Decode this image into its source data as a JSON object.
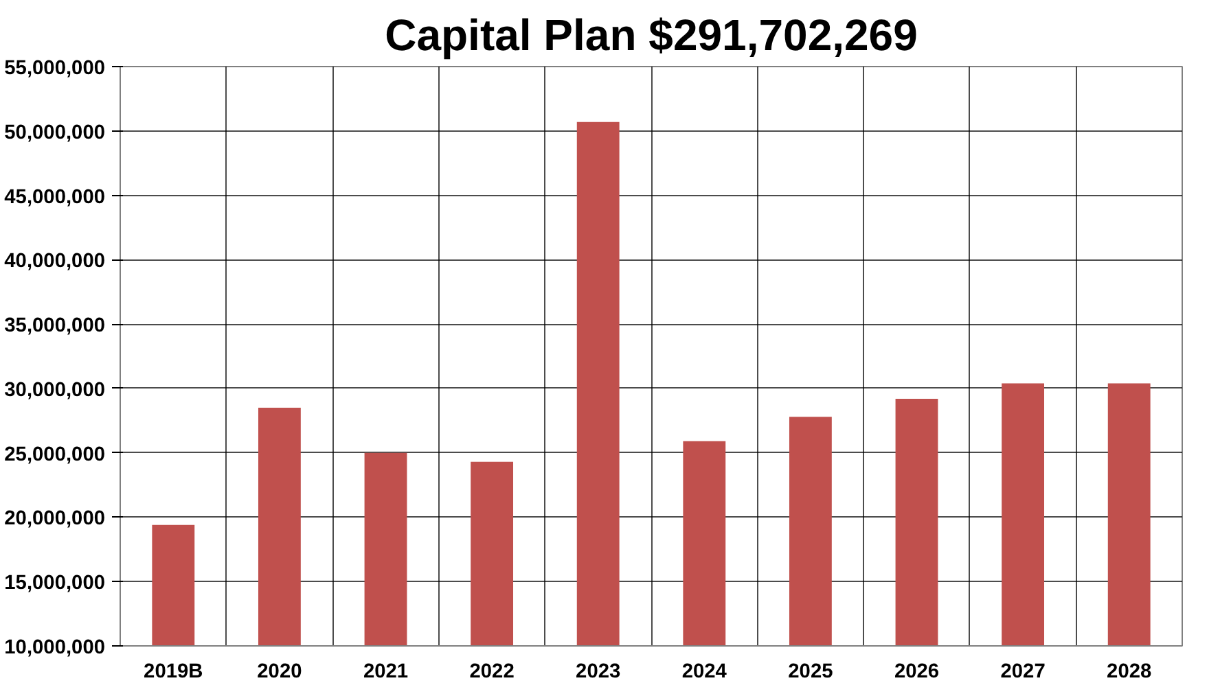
{
  "chart_data": {
    "type": "bar",
    "title": "Capital Plan $291,702,269",
    "categories": [
      "2019B",
      "2020",
      "2021",
      "2022",
      "2023",
      "2024",
      "2025",
      "2026",
      "2027",
      "2028"
    ],
    "values": [
      19400000,
      28500000,
      25000000,
      24300000,
      50700000,
      25900000,
      27800000,
      29200000,
      30400000,
      30400000
    ],
    "color": "#c0504d",
    "ylim": [
      10000000,
      55000000
    ],
    "yticks": [
      {
        "value": 10000000,
        "label": "10,000,000"
      },
      {
        "value": 15000000,
        "label": "15,000,000"
      },
      {
        "value": 20000000,
        "label": "20,000,000"
      },
      {
        "value": 25000000,
        "label": "25,000,000"
      },
      {
        "value": 30000000,
        "label": "30,000,000"
      },
      {
        "value": 35000000,
        "label": "35,000,000"
      },
      {
        "value": 40000000,
        "label": "40,000,000"
      },
      {
        "value": 45000000,
        "label": "45,000,000"
      },
      {
        "value": 50000000,
        "label": "50,000,000"
      },
      {
        "value": 55000000,
        "label": "55,000,000"
      }
    ],
    "grid": true
  }
}
